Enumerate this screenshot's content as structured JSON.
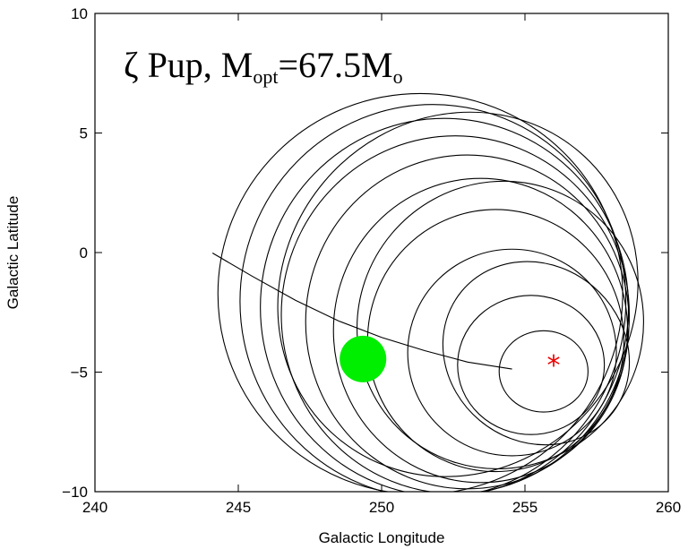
{
  "chart_data": {
    "type": "scatter",
    "title": {
      "prefix": "ζ Pup, M",
      "sub1": "opt",
      "middle": "=67.5M",
      "sub2": "o"
    },
    "xlabel": "Galactic Longitude",
    "ylabel": "Galactic Latitude",
    "xlim": [
      240,
      260
    ],
    "ylim": [
      -10,
      10
    ],
    "xticks": [
      240,
      245,
      250,
      255,
      260
    ],
    "yticks": [
      -10,
      -5,
      0,
      5,
      10
    ],
    "xtick_labels": [
      "240",
      "245",
      "250",
      "255",
      "260"
    ],
    "ytick_labels": [
      "−10",
      "−5",
      "0",
      "5",
      "10"
    ],
    "grid": false,
    "ellipses": [
      {
        "cx": 251.35,
        "cy": -1.73,
        "rx": 7.06,
        "ry": 8.38,
        "angle": 0
      },
      {
        "cx": 251.79,
        "cy": -2.04,
        "rx": 6.73,
        "ry": 8.23,
        "angle": 0
      },
      {
        "cx": 252.19,
        "cy": -2.29,
        "rx": 6.42,
        "ry": 7.9,
        "angle": 0
      },
      {
        "cx": 252.57,
        "cy": -2.6,
        "rx": 6.07,
        "ry": 7.48,
        "angle": 0
      },
      {
        "cx": 252.99,
        "cy": -2.9,
        "rx": 5.64,
        "ry": 6.98,
        "angle": 0
      },
      {
        "cx": 253.45,
        "cy": -3.26,
        "rx": 5.13,
        "ry": 6.36,
        "angle": 0
      },
      {
        "cx": 253.98,
        "cy": -3.68,
        "rx": 4.47,
        "ry": 5.48,
        "angle": 0
      },
      {
        "cx": 254.55,
        "cy": -4.18,
        "rx": 3.64,
        "ry": 4.32,
        "angle": 0
      },
      {
        "cx": 255.21,
        "cy": -4.7,
        "rx": 2.56,
        "ry": 2.91,
        "angle": 0
      },
      {
        "cx": 255.65,
        "cy": -4.97,
        "rx": 1.55,
        "ry": 1.7,
        "angle": 0
      },
      {
        "cx": 255.39,
        "cy": -4.21,
        "rx": 3.38,
        "ry": 3.67,
        "angle": 40
      },
      {
        "cx": 254.14,
        "cy": -3.03,
        "rx": 4.95,
        "ry": 6.07,
        "angle": 40
      },
      {
        "cx": 252.66,
        "cy": -1.75,
        "rx": 6.1,
        "ry": 7.83,
        "angle": 40
      }
    ],
    "track": [
      {
        "x": 244.1,
        "y": -0.02
      },
      {
        "x": 245.5,
        "y": -1.0
      },
      {
        "x": 247.0,
        "y": -2.0
      },
      {
        "x": 248.5,
        "y": -2.86
      },
      {
        "x": 250.0,
        "y": -3.55
      },
      {
        "x": 251.5,
        "y": -4.1
      },
      {
        "x": 253.0,
        "y": -4.58
      },
      {
        "x": 254.55,
        "y": -4.87
      }
    ],
    "green_dot": {
      "x": 249.35,
      "y": -4.45,
      "color": "#00ee00"
    },
    "star_marker": {
      "x": 256.0,
      "y": -4.65,
      "color": "#ee0000",
      "symbol": "*"
    }
  }
}
